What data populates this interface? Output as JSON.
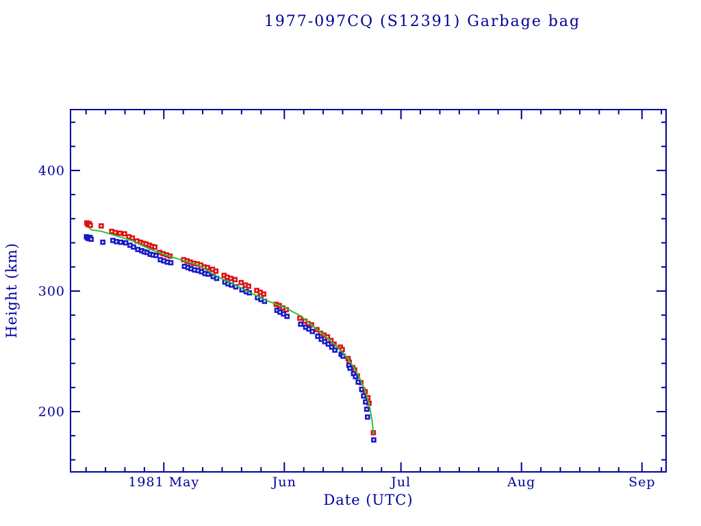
{
  "chart_data": {
    "type": "scatter",
    "title": "1977-097CQ (S12391) Garbage bag",
    "xlabel": "Date (UTC)",
    "ylabel": "Height (km)",
    "axis_color": "#000099",
    "background_color": "#ffffff",
    "grid": false,
    "legend": "none",
    "x_axis": {
      "origin_date": "1981 Apr 7",
      "range_days": [
        0,
        153.2
      ],
      "major_ticks": [
        {
          "day": 24,
          "label": "1981 May"
        },
        {
          "day": 55,
          "label": "Jun"
        },
        {
          "day": 85,
          "label": "Jul"
        },
        {
          "day": 116,
          "label": "Aug"
        },
        {
          "day": 147,
          "label": "Sep"
        }
      ],
      "minor_tick_days": [
        4,
        9,
        14,
        19,
        29,
        34,
        39,
        44,
        49,
        60,
        65,
        70,
        75,
        80,
        90,
        95,
        100,
        105,
        110,
        121,
        126,
        131,
        136,
        141,
        152
      ]
    },
    "y_axis": {
      "range_km": [
        150,
        450.5
      ],
      "major_ticks": [
        {
          "km": 200,
          "label": "200"
        },
        {
          "km": 300,
          "label": "300"
        },
        {
          "km": 400,
          "label": "400"
        }
      ],
      "minor_tick_km": [
        160,
        180,
        220,
        240,
        260,
        280,
        320,
        340,
        360,
        380,
        420,
        440
      ]
    },
    "series": [
      {
        "name": "upper-height-red",
        "type": "scatter",
        "marker": "open-square",
        "color": "#e01010",
        "points": [
          [
            4.2,
            356.5
          ],
          [
            4.5,
            355
          ],
          [
            4.8,
            356
          ],
          [
            5.1,
            354.5
          ],
          [
            7.9,
            354
          ],
          [
            10.6,
            349.5
          ],
          [
            11.5,
            348.5
          ],
          [
            12.7,
            348
          ],
          [
            13.9,
            347.5
          ],
          [
            15.0,
            345
          ],
          [
            15.9,
            344
          ],
          [
            17.1,
            341.5
          ],
          [
            18.0,
            340.5
          ],
          [
            18.7,
            339.5
          ],
          [
            19.4,
            339
          ],
          [
            20.3,
            338
          ],
          [
            21.0,
            337
          ],
          [
            21.7,
            336.5
          ],
          [
            22.9,
            332
          ],
          [
            23.8,
            331
          ],
          [
            24.7,
            330
          ],
          [
            25.6,
            329
          ],
          [
            29.1,
            326
          ],
          [
            30.0,
            325
          ],
          [
            30.8,
            324
          ],
          [
            31.7,
            323
          ],
          [
            32.6,
            322.5
          ],
          [
            33.5,
            321.5
          ],
          [
            34.4,
            320
          ],
          [
            35.2,
            319.5
          ],
          [
            36.5,
            318
          ],
          [
            37.4,
            316.5
          ],
          [
            39.5,
            313
          ],
          [
            40.3,
            311.5
          ],
          [
            41.2,
            310.5
          ],
          [
            42.3,
            309.5
          ],
          [
            43.9,
            307
          ],
          [
            45.0,
            305
          ],
          [
            45.8,
            304
          ],
          [
            47.9,
            300.5
          ],
          [
            48.8,
            299
          ],
          [
            49.7,
            297.5
          ],
          [
            52.9,
            289
          ],
          [
            53.7,
            288
          ],
          [
            54.6,
            286
          ],
          [
            55.5,
            284.5
          ],
          [
            59.0,
            277.5
          ],
          [
            60.3,
            275
          ],
          [
            61.1,
            273
          ],
          [
            62.0,
            272
          ],
          [
            63.4,
            268
          ],
          [
            64.3,
            265
          ],
          [
            65.2,
            263.5
          ],
          [
            66.1,
            262
          ],
          [
            67.0,
            259
          ],
          [
            67.8,
            256
          ],
          [
            69.4,
            253.5
          ],
          [
            69.9,
            251.5
          ],
          [
            71.4,
            244
          ],
          [
            71.7,
            241
          ],
          [
            72.6,
            236.5
          ],
          [
            73.1,
            234.5
          ],
          [
            73.8,
            229.5
          ],
          [
            74.7,
            224
          ],
          [
            75.2,
            218
          ],
          [
            75.8,
            216.5
          ],
          [
            76.5,
            211.5
          ],
          [
            76.8,
            207
          ],
          [
            77.9,
            182.5
          ]
        ]
      },
      {
        "name": "lower-height-blue",
        "type": "scatter",
        "marker": "open-square",
        "color": "#1818cc",
        "points": [
          [
            4.1,
            345
          ],
          [
            4.4,
            344
          ],
          [
            4.7,
            343.5
          ],
          [
            5.0,
            344.5
          ],
          [
            5.3,
            343
          ],
          [
            8.3,
            340.5
          ],
          [
            10.9,
            342
          ],
          [
            11.8,
            341
          ],
          [
            12.9,
            340.5
          ],
          [
            14.2,
            340
          ],
          [
            15.3,
            338
          ],
          [
            16.2,
            336.5
          ],
          [
            17.3,
            334.5
          ],
          [
            18.3,
            333.5
          ],
          [
            19.0,
            332.5
          ],
          [
            19.7,
            332
          ],
          [
            20.5,
            330.5
          ],
          [
            21.2,
            330
          ],
          [
            22.0,
            329.5
          ],
          [
            23.1,
            326
          ],
          [
            24.0,
            325
          ],
          [
            24.9,
            324
          ],
          [
            25.8,
            323.5
          ],
          [
            29.3,
            320.5
          ],
          [
            30.2,
            319.5
          ],
          [
            31.0,
            318.5
          ],
          [
            31.9,
            317.5
          ],
          [
            32.8,
            317
          ],
          [
            33.7,
            316
          ],
          [
            34.6,
            314.5
          ],
          [
            35.4,
            314
          ],
          [
            36.7,
            312
          ],
          [
            37.6,
            310.5
          ],
          [
            39.7,
            307.5
          ],
          [
            40.5,
            306
          ],
          [
            41.4,
            305
          ],
          [
            42.5,
            303.5
          ],
          [
            44.1,
            301
          ],
          [
            45.2,
            299.5
          ],
          [
            46.0,
            298.5
          ],
          [
            48.1,
            294.5
          ],
          [
            49.0,
            293
          ],
          [
            49.9,
            291.5
          ],
          [
            53.1,
            284
          ],
          [
            53.9,
            282.5
          ],
          [
            54.8,
            281
          ],
          [
            55.7,
            279
          ],
          [
            59.2,
            272.5
          ],
          [
            60.5,
            270
          ],
          [
            61.3,
            268.5
          ],
          [
            62.2,
            266.5
          ],
          [
            63.6,
            262.5
          ],
          [
            64.5,
            260
          ],
          [
            65.4,
            258
          ],
          [
            66.3,
            256
          ],
          [
            67.2,
            253.5
          ],
          [
            68.0,
            251
          ],
          [
            69.6,
            247.5
          ],
          [
            70.1,
            246
          ],
          [
            71.6,
            238.5
          ],
          [
            71.9,
            236
          ],
          [
            72.8,
            231.5
          ],
          [
            73.3,
            229
          ],
          [
            74.0,
            224.5
          ],
          [
            74.9,
            218.5
          ],
          [
            75.4,
            213
          ],
          [
            75.9,
            208
          ],
          [
            76.2,
            202
          ],
          [
            76.4,
            195.5
          ],
          [
            78.0,
            176.5
          ]
        ]
      },
      {
        "name": "fit-line-green",
        "type": "line",
        "color": "#2fbf2f",
        "points": [
          [
            4.9,
            352.4
          ],
          [
            5.3,
            350.8
          ],
          [
            8,
            349.5
          ],
          [
            12,
            345.6
          ],
          [
            16,
            341.6
          ],
          [
            20,
            335.4
          ],
          [
            24,
            330.3
          ],
          [
            28,
            326.3
          ],
          [
            33,
            321.3
          ],
          [
            38,
            311.6
          ],
          [
            41.8,
            306
          ],
          [
            46,
            299
          ],
          [
            50.6,
            292
          ],
          [
            55,
            286.5
          ],
          [
            59.4,
            279
          ],
          [
            63,
            269
          ],
          [
            65,
            264
          ],
          [
            67.5,
            257
          ],
          [
            69.6,
            250.5
          ],
          [
            71.4,
            243.5
          ],
          [
            73,
            236
          ],
          [
            74.5,
            227
          ],
          [
            75.5,
            219.5
          ],
          [
            76.3,
            212
          ],
          [
            77,
            203
          ],
          [
            77.6,
            192
          ],
          [
            77.9,
            181
          ]
        ]
      }
    ]
  }
}
